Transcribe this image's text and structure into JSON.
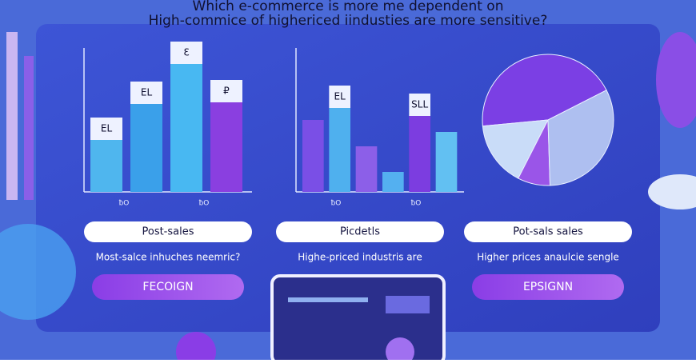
{
  "header": {
    "title_lines": [
      "Which e-commerce is more me dependent on",
      "High-commice of highericed iindusties are more sensitive?"
    ]
  },
  "panels": [
    {
      "chart": {
        "type": "bar",
        "values": [
          65,
          110,
          160,
          112
        ],
        "labels": [
          "EL",
          "EL",
          "Ɛ",
          "₽"
        ],
        "colors": [
          "#4fb6ee",
          "#3aa0ea",
          "#48b8f2",
          "#8a3fe0"
        ],
        "axis_labels": [
          "ƀO",
          "ƀO"
        ]
      },
      "pill": "Post-sales",
      "caption": "Most-salce inhuches neemric?",
      "button": "FECOIGN"
    },
    {
      "chart": {
        "type": "bar",
        "values": [
          90,
          105,
          57,
          25,
          95,
          75
        ],
        "labels": [
          null,
          "EL",
          null,
          null,
          "SLL",
          null
        ],
        "colors": [
          "#7a4fe6",
          "#4fb0ee",
          "#8c5fe8",
          "#54b0f0",
          "#7c3de0",
          "#62c0f2"
        ],
        "axis_labels": [
          "ƀO",
          "ƀO"
        ]
      },
      "pill": "Picdetls",
      "caption": "Highe-priced industris are"
    },
    {
      "chart": {
        "type": "pie",
        "values": [
          44,
          16,
          8,
          32
        ],
        "colors": [
          "#7b3fe4",
          "#c9dcf8",
          "#9a55e8",
          "#aebff0"
        ]
      },
      "pill": "Pot-sals sales",
      "caption": "Higher prices anaulcie sengle",
      "button": "EPSIGNN"
    }
  ]
}
